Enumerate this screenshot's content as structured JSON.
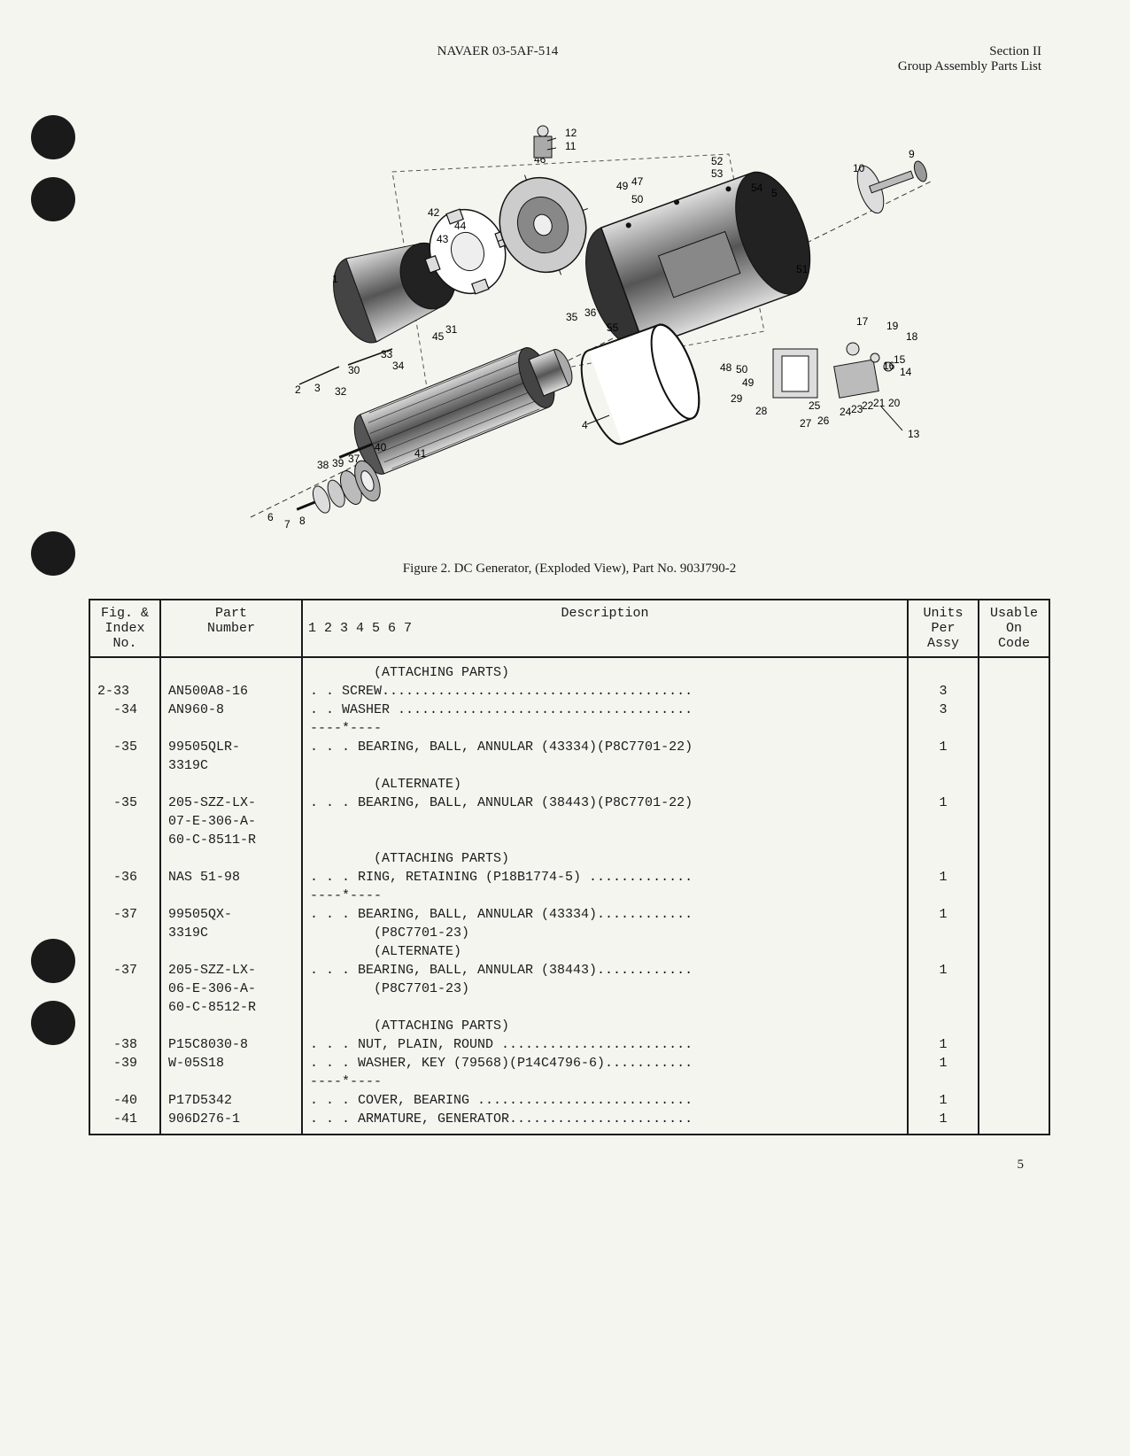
{
  "header": {
    "doc_number": "NAVAER 03-5AF-514",
    "section": "Section II",
    "subtitle": "Group Assembly Parts List"
  },
  "figure": {
    "caption": "Figure 2.  DC Generator, (Exploded View), Part No. 903J790-2",
    "callouts": [
      "1",
      "2",
      "3",
      "4",
      "5",
      "6",
      "7",
      "8",
      "9",
      "10",
      "11",
      "12",
      "13",
      "14",
      "15",
      "16",
      "17",
      "18",
      "19",
      "20",
      "21",
      "22",
      "23",
      "24",
      "25",
      "26",
      "27",
      "28",
      "29",
      "30",
      "31",
      "32",
      "33",
      "34",
      "35",
      "36",
      "37",
      "38",
      "39",
      "40",
      "41",
      "42",
      "43",
      "44",
      "45",
      "46",
      "47",
      "48",
      "49",
      "50",
      "51",
      "52",
      "53",
      "54",
      "55"
    ]
  },
  "table": {
    "columns": {
      "index": "Fig. &\nIndex\nNo.",
      "part": "Part\nNumber",
      "desc_top": "Description",
      "desc_nums": "1 2 3 4 5 6 7",
      "units": "Units\nPer\nAssy",
      "code": "Usable\nOn\nCode"
    },
    "rows": [
      {
        "index": "",
        "part": "",
        "desc": "        (ATTACHING PARTS)",
        "units": "",
        "leader": false
      },
      {
        "index": "2-33",
        "part": "AN500A8-16",
        "desc": ". . SCREW",
        "units": "3",
        "leader": true
      },
      {
        "index": "  -34",
        "part": "AN960-8",
        "desc": ". . WASHER ",
        "units": "3",
        "leader": true
      },
      {
        "index": "",
        "part": "",
        "desc": "----*----",
        "units": "",
        "leader": false
      },
      {
        "index": "  -35",
        "part": "99505QLR-",
        "desc": ". . . BEARING, BALL, ANNULAR (43334)(P8C7701-22)",
        "units": "1",
        "leader": false
      },
      {
        "index": "",
        "part": "3319C",
        "desc": "",
        "units": "",
        "leader": false
      },
      {
        "index": "",
        "part": "",
        "desc": "        (ALTERNATE)",
        "units": "",
        "leader": false
      },
      {
        "index": "  -35",
        "part": "205-SZZ-LX-",
        "desc": ". . . BEARING, BALL, ANNULAR (38443)(P8C7701-22)",
        "units": "1",
        "leader": false
      },
      {
        "index": "",
        "part": "07-E-306-A-",
        "desc": "",
        "units": "",
        "leader": false
      },
      {
        "index": "",
        "part": "60-C-8511-R",
        "desc": "",
        "units": "",
        "leader": false
      },
      {
        "index": "",
        "part": "",
        "desc": "        (ATTACHING PARTS)",
        "units": "",
        "leader": false
      },
      {
        "index": "  -36",
        "part": "NAS 51-98",
        "desc": ". . . RING, RETAINING (P18B1774-5) ",
        "units": "1",
        "leader": true
      },
      {
        "index": "",
        "part": "",
        "desc": "----*----",
        "units": "",
        "leader": false
      },
      {
        "index": "  -37",
        "part": "99505QX-",
        "desc": ". . . BEARING, BALL, ANNULAR (43334)",
        "units": "1",
        "leader": true
      },
      {
        "index": "",
        "part": "3319C",
        "desc": "        (P8C7701-23)",
        "units": "",
        "leader": false
      },
      {
        "index": "",
        "part": "",
        "desc": "        (ALTERNATE)",
        "units": "",
        "leader": false
      },
      {
        "index": "  -37",
        "part": "205-SZZ-LX-",
        "desc": ". . . BEARING, BALL, ANNULAR (38443)",
        "units": "1",
        "leader": true
      },
      {
        "index": "",
        "part": "06-E-306-A-",
        "desc": "        (P8C7701-23)",
        "units": "",
        "leader": false
      },
      {
        "index": "",
        "part": "60-C-8512-R",
        "desc": "",
        "units": "",
        "leader": false
      },
      {
        "index": "",
        "part": "",
        "desc": "        (ATTACHING PARTS)",
        "units": "",
        "leader": false
      },
      {
        "index": "  -38",
        "part": "P15C8030-8",
        "desc": ". . . NUT, PLAIN, ROUND ",
        "units": "1",
        "leader": true
      },
      {
        "index": "  -39",
        "part": "W-05S18",
        "desc": ". . . WASHER, KEY (79568)(P14C4796-6)",
        "units": "1",
        "leader": true
      },
      {
        "index": "",
        "part": "",
        "desc": "----*----",
        "units": "",
        "leader": false
      },
      {
        "index": "  -40",
        "part": "P17D5342",
        "desc": ". . . COVER, BEARING ",
        "units": "1",
        "leader": true
      },
      {
        "index": "  -41",
        "part": "906D276-1",
        "desc": ". . . ARMATURE, GENERATOR",
        "units": "1",
        "leader": true
      }
    ]
  },
  "page_number": "5",
  "punch_positions": [
    130,
    200,
    600,
    1060,
    1130
  ],
  "colors": {
    "text": "#1a1a1a",
    "background": "#f5f5f0",
    "border": "#1a1a1a"
  }
}
